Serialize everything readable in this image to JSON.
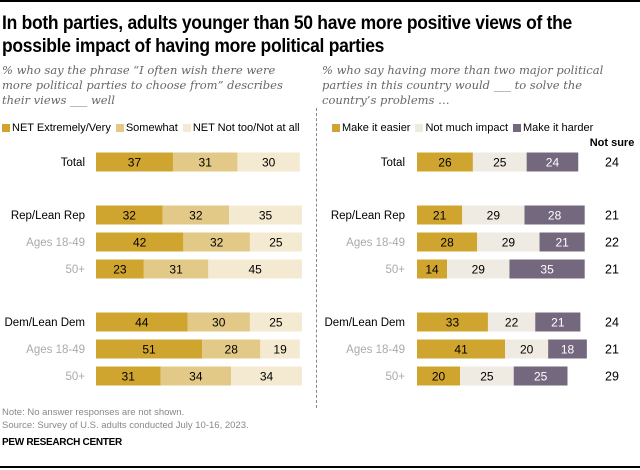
{
  "title": "In both parties, adults younger than 50 have more positive views of the possible impact of having more political parties",
  "notes": {
    "note": "Note: No answer responses are not shown.",
    "source": "Source: Survey of U.S. adults conducted July 10-16, 2023.",
    "brand": "PEW RESEARCH CENTER"
  },
  "chart_data": [
    {
      "type": "bar",
      "orientation": "horizontal",
      "stacked": true,
      "subtitle": "% who say the phrase “I often wish there were more political parties to choose from” describes their views ___ well",
      "categories": [
        "Total",
        "Rep/Lean Rep",
        "Ages 18-49",
        "50+",
        "Dem/Lean Dem",
        "Ages 18-49",
        "50+"
      ],
      "category_style": [
        "main",
        "main",
        "sub",
        "sub",
        "main",
        "sub",
        "sub"
      ],
      "series": [
        {
          "name": "NET Extremely/Very",
          "color": "#cfa530",
          "label_color": "#000000",
          "values": [
            37,
            32,
            42,
            23,
            44,
            51,
            31
          ]
        },
        {
          "name": "Somewhat",
          "color": "#e3c987",
          "label_color": "#000000",
          "values": [
            31,
            32,
            32,
            31,
            30,
            28,
            34
          ]
        },
        {
          "name": "NET Not too/Not at all",
          "color": "#f4ead2",
          "label_color": "#000000",
          "values": [
            30,
            35,
            25,
            45,
            25,
            19,
            34
          ]
        }
      ],
      "legend": "top"
    },
    {
      "type": "bar",
      "orientation": "horizontal",
      "stacked": true,
      "subtitle": "% who say having more than two major political parties in this country would ___ to solve the country’s problems …",
      "categories": [
        "Total",
        "Rep/Lean Rep",
        "Ages 18-49",
        "50+",
        "Dem/Lean Dem",
        "Ages 18-49",
        "50+"
      ],
      "category_style": [
        "main",
        "main",
        "sub",
        "sub",
        "main",
        "sub",
        "sub"
      ],
      "series": [
        {
          "name": "Make it easier",
          "color": "#cfa530",
          "label_color": "#000000",
          "values": [
            26,
            21,
            28,
            14,
            33,
            41,
            20
          ]
        },
        {
          "name": "Not much impact",
          "color": "#efebe3",
          "label_color": "#000000",
          "values": [
            25,
            29,
            29,
            29,
            22,
            20,
            25
          ]
        },
        {
          "name": "Make it harder",
          "color": "#74687f",
          "label_color": "#ffffff",
          "values": [
            24,
            28,
            21,
            35,
            21,
            18,
            25
          ]
        }
      ],
      "extra_column": {
        "header": "Not sure",
        "values": [
          24,
          21,
          22,
          21,
          24,
          21,
          29
        ]
      },
      "legend": "top"
    }
  ]
}
